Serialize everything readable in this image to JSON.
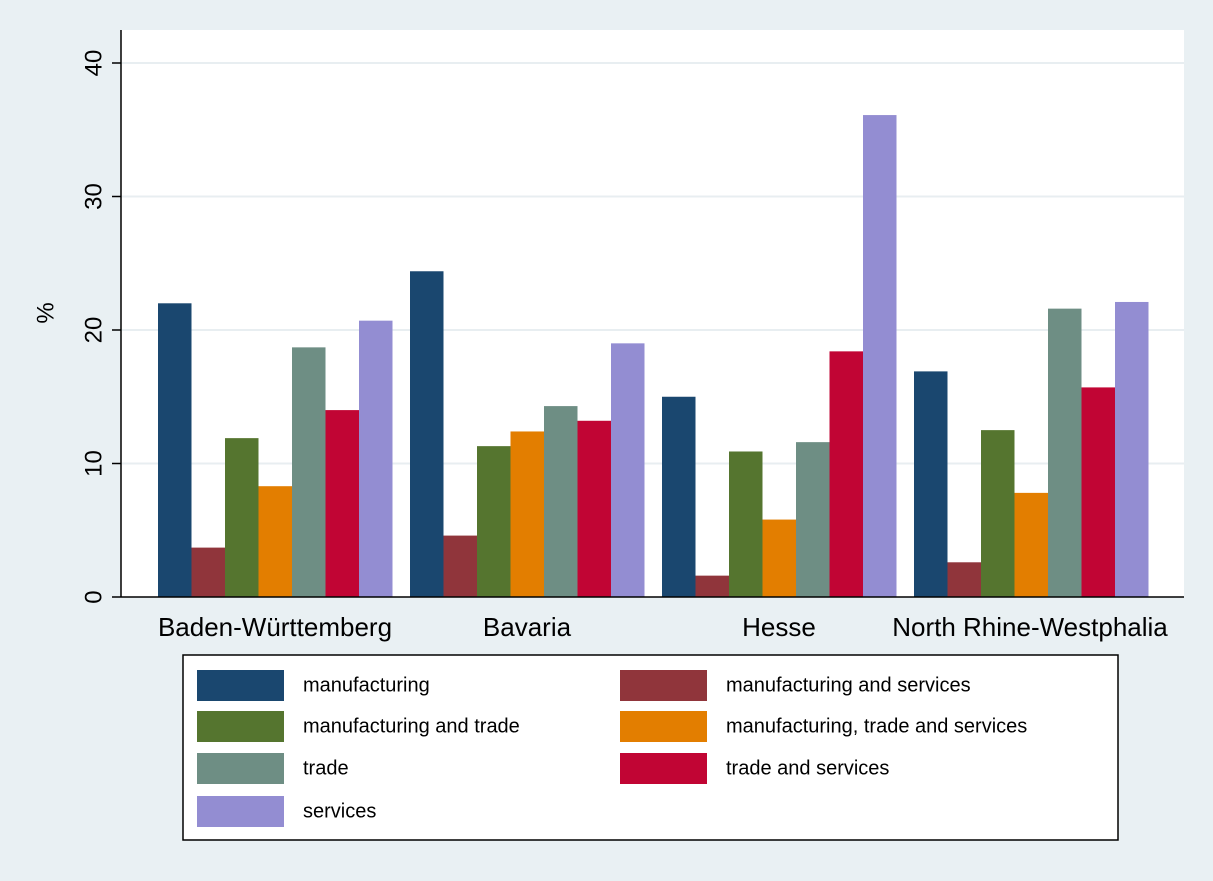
{
  "chart_data": {
    "type": "bar",
    "ylabel": "%",
    "xlabel": "",
    "ylim": [
      0,
      40
    ],
    "yticks": [
      0,
      10,
      20,
      30,
      40
    ],
    "grid": true,
    "legend_position": "bottom",
    "categories": [
      "Baden-Württemberg",
      "Bavaria",
      "Hesse",
      "North Rhine-Westphalia"
    ],
    "series": [
      {
        "name": "manufacturing",
        "color": "#1a476f",
        "values": [
          22.0,
          24.4,
          15.0,
          16.9
        ]
      },
      {
        "name": "manufacturing and services",
        "color": "#90353b",
        "values": [
          3.7,
          4.6,
          1.6,
          2.6
        ]
      },
      {
        "name": "manufacturing and trade",
        "color": "#55752f",
        "values": [
          11.9,
          11.3,
          10.9,
          12.5
        ]
      },
      {
        "name": "manufacturing, trade and services",
        "color": "#e37e00",
        "values": [
          8.3,
          12.4,
          5.8,
          7.8
        ]
      },
      {
        "name": "trade",
        "color": "#6e8e84",
        "values": [
          18.7,
          14.3,
          11.6,
          21.6
        ]
      },
      {
        "name": "trade and services",
        "color": "#c10534",
        "values": [
          14.0,
          13.2,
          18.4,
          15.7
        ]
      },
      {
        "name": "services",
        "color": "#938dd2",
        "values": [
          20.7,
          19.0,
          36.1,
          22.1
        ]
      }
    ]
  }
}
